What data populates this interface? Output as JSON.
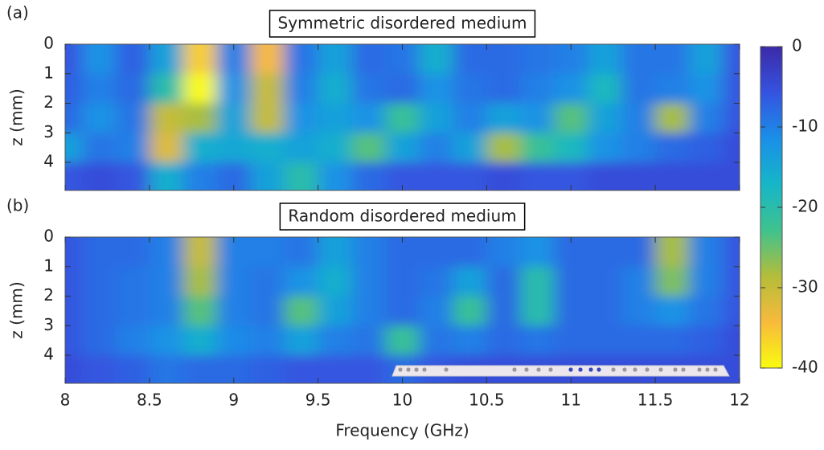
{
  "chart_data": [
    {
      "type": "heatmap",
      "panel_label": "(a)",
      "title": "Symmetric disordered medium",
      "ylabel": "z (mm)",
      "x": [
        8.0,
        8.2,
        8.4,
        8.6,
        8.8,
        9.0,
        9.2,
        9.4,
        9.6,
        9.8,
        10.0,
        10.2,
        10.4,
        10.6,
        10.8,
        11.0,
        11.2,
        11.4,
        11.6,
        11.8,
        12.0
      ],
      "y": [
        0.5,
        1.5,
        2.5,
        3.5,
        4.5
      ],
      "values": [
        [
          -6,
          -12,
          -7,
          -14,
          -36,
          -10,
          -34,
          -9,
          -14,
          -8,
          -9,
          -16,
          -8,
          -8,
          -9,
          -10,
          -14,
          -9,
          -9,
          -14,
          -6
        ],
        [
          -7,
          -10,
          -8,
          -20,
          -40,
          -12,
          -30,
          -10,
          -16,
          -9,
          -8,
          -12,
          -9,
          -8,
          -10,
          -12,
          -18,
          -9,
          -10,
          -12,
          -6
        ],
        [
          -8,
          -12,
          -9,
          -30,
          -28,
          -14,
          -30,
          -12,
          -14,
          -12,
          -22,
          -14,
          -10,
          -14,
          -12,
          -24,
          -14,
          -10,
          -28,
          -10,
          -6
        ],
        [
          -14,
          -9,
          -10,
          -32,
          -16,
          -15,
          -16,
          -14,
          -16,
          -24,
          -14,
          -10,
          -14,
          -28,
          -22,
          -18,
          -12,
          -10,
          -8,
          -7,
          -5
        ],
        [
          -6,
          -5,
          -6,
          -16,
          -10,
          -8,
          -14,
          -20,
          -12,
          -8,
          -6,
          -6,
          -6,
          -5,
          -6,
          -6,
          -5,
          -5,
          -5,
          -5,
          -5
        ]
      ],
      "xlim": [
        8,
        12
      ],
      "xticks": [
        8,
        8.5,
        9,
        9.5,
        10,
        10.5,
        11,
        11.5,
        12
      ],
      "ylim": [
        0,
        4.95
      ],
      "yticks": [
        0,
        1,
        2,
        3,
        4
      ],
      "clim": [
        -40,
        0
      ],
      "cticks": [
        0,
        -10,
        -20,
        -30,
        -40
      ],
      "colormap": [
        "#3b2aa8",
        "#3553e0",
        "#1a8fe8",
        "#16b6c8",
        "#3fc28e",
        "#b4bd3a",
        "#f8ba3c",
        "#f9fb0e"
      ]
    },
    {
      "type": "heatmap",
      "panel_label": "(b)",
      "title": "Random disordered medium",
      "ylabel": "z (mm)",
      "xlabel": "Frequency (GHz)",
      "x": [
        8.0,
        8.2,
        8.4,
        8.6,
        8.8,
        9.0,
        9.2,
        9.4,
        9.6,
        9.8,
        10.0,
        10.2,
        10.4,
        10.6,
        10.8,
        11.0,
        11.2,
        11.4,
        11.6,
        11.8,
        12.0
      ],
      "y": [
        0.5,
        1.5,
        2.5,
        3.5,
        4.5
      ],
      "values": [
        [
          -6,
          -8,
          -8,
          -10,
          -30,
          -10,
          -10,
          -9,
          -14,
          -10,
          -8,
          -8,
          -8,
          -10,
          -12,
          -8,
          -8,
          -8,
          -28,
          -10,
          -6
        ],
        [
          -6,
          -8,
          -9,
          -10,
          -28,
          -10,
          -9,
          -12,
          -16,
          -10,
          -8,
          -9,
          -14,
          -8,
          -20,
          -8,
          -8,
          -10,
          -26,
          -10,
          -6
        ],
        [
          -6,
          -8,
          -9,
          -10,
          -24,
          -10,
          -9,
          -24,
          -14,
          -10,
          -8,
          -10,
          -22,
          -8,
          -20,
          -8,
          -8,
          -10,
          -12,
          -9,
          -6
        ],
        [
          -6,
          -8,
          -10,
          -12,
          -16,
          -11,
          -10,
          -14,
          -10,
          -9,
          -22,
          -9,
          -10,
          -8,
          -9,
          -8,
          -8,
          -8,
          -8,
          -7,
          -5
        ],
        [
          -5,
          -6,
          -7,
          -9,
          -8,
          -8,
          -7,
          -6,
          -6,
          -6,
          -8,
          -6,
          -5,
          -5,
          -5,
          -5,
          -5,
          -5,
          -5,
          -5,
          -5
        ]
      ],
      "xlim": [
        8,
        12
      ],
      "xticks": [
        8,
        8.5,
        9,
        9.5,
        10,
        10.5,
        11,
        11.5,
        12
      ],
      "ylim": [
        0,
        4.95
      ],
      "yticks": [
        0,
        1,
        2,
        3,
        4
      ]
    }
  ]
}
